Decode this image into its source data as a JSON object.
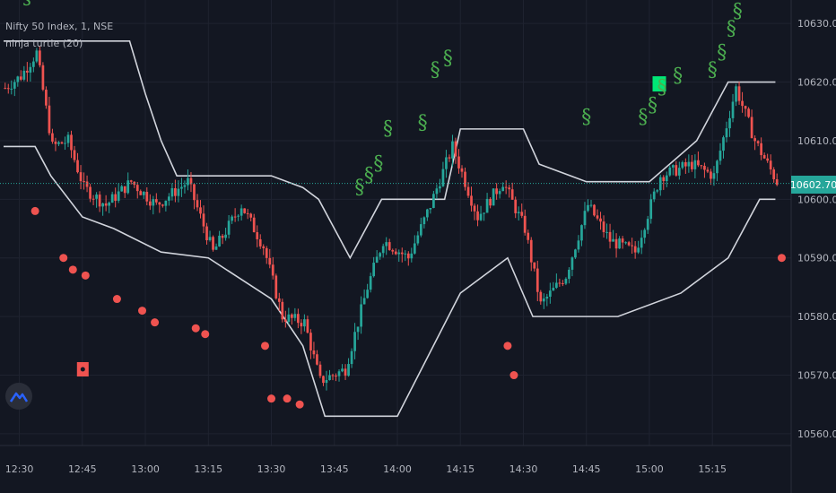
{
  "header": {
    "symbol_line": "Nifty 50 Index, 1, NSE",
    "indicator_line": "ninja turtle (20)"
  },
  "last_price_label": "10602.70",
  "colors": {
    "background": "#131722",
    "grid": "#1f2330",
    "up": "#26a69a",
    "down": "#ef5350",
    "channel": "#d1d4dc",
    "signal": "#4caf50",
    "price_line": "#26a69a"
  },
  "chart_data": {
    "type": "candlestick",
    "y_axis": {
      "ylim": [
        10558,
        10634
      ],
      "ticks": [
        "10630.00",
        "10620.00",
        "10610.00",
        "10600.00",
        "10590.00",
        "10580.00",
        "10570.00",
        "10560.00"
      ],
      "tick_values": [
        10630,
        10620,
        10610,
        10600,
        10590,
        10580,
        10570,
        10560
      ]
    },
    "x_axis": {
      "ticks": [
        "12:30",
        "12:45",
        "13:00",
        "13:15",
        "13:30",
        "13:45",
        "14:00",
        "14:15",
        "14:30",
        "14:45",
        "15:00",
        "15:15"
      ],
      "tick_bars": [
        5,
        25,
        45,
        65,
        85,
        105,
        125,
        145,
        165,
        185,
        205,
        225
      ],
      "bars": 250
    },
    "last_price": 10602.7,
    "upper_channel": [
      {
        "bar": 0,
        "v": 10627
      },
      {
        "bar": 40,
        "v": 10627
      },
      {
        "bar": 45,
        "v": 10618
      },
      {
        "bar": 50,
        "v": 10610
      },
      {
        "bar": 55,
        "v": 10604
      },
      {
        "bar": 85,
        "v": 10604
      },
      {
        "bar": 95,
        "v": 10602
      },
      {
        "bar": 100,
        "v": 10600
      },
      {
        "bar": 110,
        "v": 10590
      },
      {
        "bar": 120,
        "v": 10600
      },
      {
        "bar": 140,
        "v": 10600
      },
      {
        "bar": 145,
        "v": 10612
      },
      {
        "bar": 165,
        "v": 10612
      },
      {
        "bar": 170,
        "v": 10606
      },
      {
        "bar": 185,
        "v": 10603
      },
      {
        "bar": 205,
        "v": 10603
      },
      {
        "bar": 220,
        "v": 10610
      },
      {
        "bar": 230,
        "v": 10620
      },
      {
        "bar": 245,
        "v": 10620
      }
    ],
    "lower_channel": [
      {
        "bar": 0,
        "v": 10609
      },
      {
        "bar": 10,
        "v": 10609
      },
      {
        "bar": 15,
        "v": 10604
      },
      {
        "bar": 25,
        "v": 10597
      },
      {
        "bar": 35,
        "v": 10595
      },
      {
        "bar": 50,
        "v": 10591
      },
      {
        "bar": 65,
        "v": 10590
      },
      {
        "bar": 85,
        "v": 10583
      },
      {
        "bar": 95,
        "v": 10575
      },
      {
        "bar": 102,
        "v": 10563
      },
      {
        "bar": 125,
        "v": 10563
      },
      {
        "bar": 145,
        "v": 10584
      },
      {
        "bar": 160,
        "v": 10590
      },
      {
        "bar": 168,
        "v": 10580
      },
      {
        "bar": 195,
        "v": 10580
      },
      {
        "bar": 215,
        "v": 10584
      },
      {
        "bar": 230,
        "v": 10590
      },
      {
        "bar": 240,
        "v": 10600
      },
      {
        "bar": 245,
        "v": 10600
      }
    ],
    "close_path": [
      {
        "bar": 0,
        "v": 10619
      },
      {
        "bar": 5,
        "v": 10621
      },
      {
        "bar": 10,
        "v": 10625
      },
      {
        "bar": 15,
        "v": 10609
      },
      {
        "bar": 20,
        "v": 10610
      },
      {
        "bar": 25,
        "v": 10602
      },
      {
        "bar": 32,
        "v": 10599
      },
      {
        "bar": 40,
        "v": 10603
      },
      {
        "bar": 48,
        "v": 10599
      },
      {
        "bar": 58,
        "v": 10603
      },
      {
        "bar": 66,
        "v": 10591
      },
      {
        "bar": 75,
        "v": 10599
      },
      {
        "bar": 82,
        "v": 10592
      },
      {
        "bar": 88,
        "v": 10580
      },
      {
        "bar": 95,
        "v": 10579
      },
      {
        "bar": 100,
        "v": 10569
      },
      {
        "bar": 108,
        "v": 10571
      },
      {
        "bar": 115,
        "v": 10585
      },
      {
        "bar": 120,
        "v": 10593
      },
      {
        "bar": 128,
        "v": 10590
      },
      {
        "bar": 135,
        "v": 10599
      },
      {
        "bar": 142,
        "v": 10609
      },
      {
        "bar": 150,
        "v": 10597
      },
      {
        "bar": 158,
        "v": 10603
      },
      {
        "bar": 165,
        "v": 10595
      },
      {
        "bar": 170,
        "v": 10582
      },
      {
        "bar": 178,
        "v": 10587
      },
      {
        "bar": 185,
        "v": 10599
      },
      {
        "bar": 192,
        "v": 10593
      },
      {
        "bar": 200,
        "v": 10591
      },
      {
        "bar": 208,
        "v": 10604
      },
      {
        "bar": 218,
        "v": 10606
      },
      {
        "bar": 225,
        "v": 10604
      },
      {
        "bar": 232,
        "v": 10619
      },
      {
        "bar": 238,
        "v": 10610
      },
      {
        "bar": 245,
        "v": 10603
      }
    ],
    "signals": [
      {
        "bar": 113,
        "v": 10601
      },
      {
        "bar": 116,
        "v": 10603
      },
      {
        "bar": 119,
        "v": 10605
      },
      {
        "bar": 122,
        "v": 10611
      },
      {
        "bar": 133,
        "v": 10612
      },
      {
        "bar": 137,
        "v": 10621
      },
      {
        "bar": 141,
        "v": 10623
      },
      {
        "bar": 185,
        "v": 10613
      },
      {
        "bar": 203,
        "v": 10613
      },
      {
        "bar": 206,
        "v": 10615
      },
      {
        "bar": 209,
        "v": 10618
      },
      {
        "bar": 214,
        "v": 10620
      },
      {
        "bar": 225,
        "v": 10621
      },
      {
        "bar": 228,
        "v": 10624
      },
      {
        "bar": 231,
        "v": 10628
      },
      {
        "bar": 233,
        "v": 10631
      }
    ],
    "signal_box": {
      "bar": 208,
      "v": 10619
    },
    "stop_dots": [
      {
        "bar": 10,
        "v": 10598
      },
      {
        "bar": 19,
        "v": 10590
      },
      {
        "bar": 22,
        "v": 10588
      },
      {
        "bar": 26,
        "v": 10587
      },
      {
        "bar": 36,
        "v": 10583
      },
      {
        "bar": 44,
        "v": 10581
      },
      {
        "bar": 48,
        "v": 10579
      },
      {
        "bar": 61,
        "v": 10578
      },
      {
        "bar": 64,
        "v": 10577
      },
      {
        "bar": 83,
        "v": 10575
      },
      {
        "bar": 85,
        "v": 10566
      },
      {
        "bar": 90,
        "v": 10566
      },
      {
        "bar": 94,
        "v": 10565
      },
      {
        "bar": 160,
        "v": 10575
      },
      {
        "bar": 162,
        "v": 10570
      },
      {
        "bar": 247,
        "v": 10590
      }
    ],
    "stop_box": {
      "bar": 25,
      "v": 10571
    }
  }
}
